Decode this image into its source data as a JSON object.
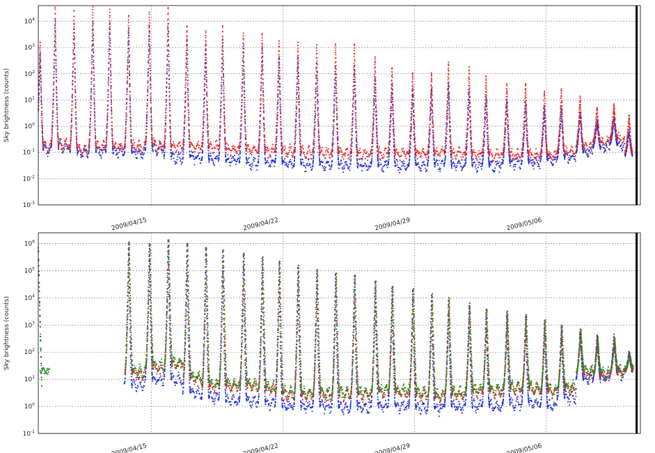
{
  "chart_data": [
    {
      "type": "scatter",
      "ylabel": "Sky brightness (counts)",
      "yscale": "log",
      "ylim_exp": [
        -3,
        4.6
      ],
      "ytick_exponents": [
        -3,
        -2,
        -1,
        0,
        1,
        2,
        3,
        4
      ],
      "x_tick_labels": [
        "2009/04/15",
        "2009/04/22",
        "2009/04/29",
        "2009/05/06"
      ],
      "x_tick_days": [
        15,
        22,
        29,
        36
      ],
      "xlim_days": [
        9,
        41
      ],
      "end_marker_day": 40.8,
      "grid": true,
      "colors": {
        "red": "#e8221e",
        "blue": "#1f2fd6"
      },
      "series": [
        {
          "color": "red",
          "days": [
            9.1,
            9.9,
            10.9,
            11.9,
            12.8,
            13.8,
            14.9,
            15.9,
            16.9,
            17.9,
            18.8,
            19.9,
            20.9,
            21.8,
            22.8,
            23.8,
            24.8,
            25.8,
            26.9,
            27.8,
            28.9,
            29.9,
            30.8,
            31.9,
            32.8,
            33.9,
            34.9,
            35.9,
            36.8,
            37.8,
            38.7,
            39.6,
            40.4
          ],
          "peak_exp": [
            3.2,
            4.5,
            4.4,
            4.5,
            4.4,
            4.2,
            4.3,
            4.5,
            3.8,
            3.6,
            3.8,
            3.5,
            3.5,
            3.2,
            3.2,
            3.1,
            3.1,
            3.1,
            2.6,
            2.2,
            2.0,
            2.0,
            2.4,
            2.2,
            1.9,
            1.6,
            1.6,
            1.3,
            1.4,
            1.1,
            0.7,
            0.8,
            0.4
          ],
          "trough_exp": [
            -0.8,
            -0.7,
            -0.9,
            -0.8,
            -0.8,
            -0.8,
            -0.7,
            -0.8,
            -0.8,
            -0.8,
            -0.9,
            -0.9,
            -0.95,
            -0.95,
            -1.0,
            -1.0,
            -1.05,
            -1.05,
            -1.05,
            -1.05,
            -1.05,
            -1.05,
            -1.05,
            -1.1,
            -1.1,
            -1.1,
            -1.1,
            -1.1,
            -1.0,
            -0.8,
            -0.6,
            -0.5,
            -1.0
          ]
        },
        {
          "color": "blue",
          "days": [
            9.1,
            9.9,
            10.9,
            11.9,
            12.8,
            13.8,
            14.9,
            15.9,
            16.9,
            17.9,
            18.8,
            19.9,
            20.9,
            21.8,
            22.8,
            23.8,
            24.8,
            25.8,
            26.9,
            27.8,
            28.9,
            29.9,
            30.8,
            31.9,
            32.8,
            33.9,
            34.9,
            35.9,
            36.8,
            37.8,
            38.7,
            39.6,
            40.4
          ],
          "peak_exp": [
            2.8,
            4.0,
            3.9,
            3.9,
            3.9,
            3.7,
            3.8,
            3.9,
            3.3,
            3.1,
            3.3,
            3.0,
            3.0,
            2.6,
            2.6,
            2.4,
            2.3,
            2.3,
            1.8,
            1.6,
            1.4,
            1.4,
            1.6,
            1.4,
            1.1,
            1.0,
            0.9,
            0.7,
            0.7,
            0.5,
            0.2,
            0.3,
            -0.2
          ],
          "trough_exp": [
            -0.9,
            -0.8,
            -1.0,
            -1.0,
            -1.0,
            -1.0,
            -0.9,
            -1.2,
            -1.2,
            -1.3,
            -1.3,
            -1.4,
            -1.4,
            -1.4,
            -1.5,
            -1.5,
            -1.5,
            -1.5,
            -1.5,
            -1.5,
            -1.5,
            -1.5,
            -1.5,
            -1.5,
            -1.5,
            -1.4,
            -1.4,
            -1.3,
            -1.2,
            -1.0,
            -0.8,
            -0.7,
            -1.1
          ]
        }
      ]
    },
    {
      "type": "scatter",
      "ylabel": "Sky brightness (counts)",
      "yscale": "log",
      "ylim_exp": [
        -1,
        6.4
      ],
      "ytick_exponents": [
        -1,
        0,
        1,
        2,
        3,
        4,
        5,
        6
      ],
      "x_tick_labels": [
        "2009/04/15",
        "2009/04/22",
        "2009/04/29",
        "2009/05/06"
      ],
      "x_tick_days": [
        15,
        22,
        29,
        36
      ],
      "xlim_days": [
        9,
        41
      ],
      "end_marker_day": 40.8,
      "grid": true,
      "colors": {
        "blue": "#1f2fd6",
        "red": "#e8221e",
        "green": "#1e8a1e",
        "gray": "#8c8c8c"
      },
      "series": [
        {
          "color": "green",
          "days": [
            13.8,
            14.9,
            15.9,
            16.9,
            17.9,
            18.8,
            19.9,
            20.9,
            21.8,
            22.8,
            23.8,
            24.8,
            25.8,
            26.9,
            27.8,
            28.9,
            29.9,
            30.8,
            31.9,
            32.8,
            33.9,
            34.9,
            35.9,
            36.8,
            37.8,
            38.7,
            39.6,
            40.4
          ],
          "peak_exp": [
            6.0,
            5.95,
            6.1,
            5.95,
            5.8,
            5.75,
            5.6,
            5.45,
            5.3,
            5.15,
            5.0,
            4.9,
            4.8,
            4.6,
            4.4,
            4.3,
            4.1,
            3.95,
            3.75,
            3.55,
            3.45,
            3.35,
            3.15,
            2.95,
            2.8,
            2.55,
            2.5,
            1.9
          ],
          "trough_exp": [
            1.3,
            1.5,
            1.6,
            1.1,
            0.8,
            0.8,
            0.8,
            0.7,
            0.5,
            0.5,
            0.5,
            0.5,
            0.5,
            0.6,
            0.6,
            0.5,
            0.4,
            0.5,
            0.6,
            0.6,
            0.7,
            0.7,
            0.6,
            0.7,
            1.3,
            1.2,
            1.3,
            1.4
          ]
        },
        {
          "color": "blue",
          "days": [
            13.8,
            14.9,
            15.9,
            16.9,
            17.9,
            18.8,
            19.9,
            20.9,
            21.8,
            22.8,
            23.8,
            24.8,
            25.8,
            26.9,
            27.8,
            28.9,
            29.9,
            30.8,
            31.9,
            32.8,
            33.9,
            34.9,
            35.9,
            36.8,
            37.8,
            38.7,
            39.6,
            40.4
          ],
          "peak_exp": [
            6.0,
            5.95,
            6.1,
            5.95,
            5.8,
            5.7,
            5.55,
            5.4,
            5.25,
            5.1,
            4.95,
            4.85,
            4.75,
            4.55,
            4.35,
            4.25,
            4.05,
            3.9,
            3.7,
            3.5,
            3.4,
            3.3,
            3.1,
            2.95,
            2.8,
            2.6,
            2.6,
            2.0
          ],
          "trough_exp": [
            0.8,
            1.0,
            1.0,
            0.5,
            0.3,
            0.2,
            0.2,
            0.1,
            0.0,
            0.0,
            0.0,
            -0.05,
            -0.05,
            0.0,
            0.0,
            -0.05,
            -0.1,
            0.0,
            0.0,
            0.0,
            0.1,
            0.1,
            0.0,
            0.3,
            1.0,
            1.0,
            1.2,
            1.3
          ]
        }
      ],
      "initial_segment": {
        "days": [
          9.0,
          9.6
        ],
        "peak_exp": 5.9,
        "trough_exp": 0.8
      }
    }
  ]
}
